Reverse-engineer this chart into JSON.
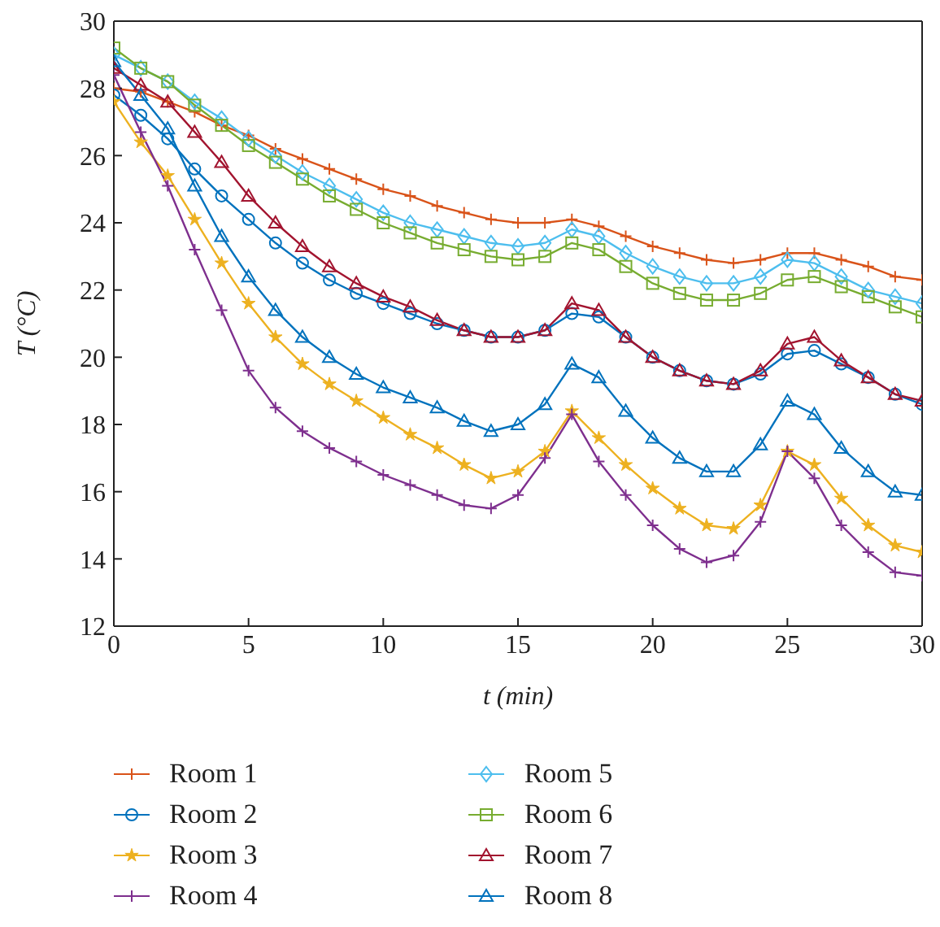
{
  "chart_data": {
    "type": "line",
    "xlabel": "t (min)",
    "ylabel": "T (°C)",
    "xlim": [
      0,
      30
    ],
    "xticks": [
      0,
      5,
      10,
      15,
      20,
      25,
      30
    ],
    "ylim": [
      12,
      30
    ],
    "yticks": [
      12,
      14,
      16,
      18,
      20,
      22,
      24,
      26,
      28,
      30
    ],
    "legend": "bottom",
    "line_style": "solid",
    "x": [
      0,
      1,
      2,
      3,
      4,
      5,
      6,
      7,
      8,
      9,
      10,
      11,
      12,
      13,
      14,
      15,
      16,
      17,
      18,
      19,
      20,
      21,
      22,
      23,
      24,
      25,
      26,
      27,
      28,
      29,
      30
    ],
    "series": [
      {
        "name": "Room 1",
        "color": "#d95319",
        "marker": "cross",
        "values": [
          28.0,
          27.9,
          27.6,
          27.3,
          26.9,
          26.6,
          26.2,
          25.9,
          25.6,
          25.3,
          25.0,
          24.8,
          24.5,
          24.3,
          24.1,
          24.0,
          24.0,
          24.1,
          23.9,
          23.6,
          23.3,
          23.1,
          22.9,
          22.8,
          22.9,
          23.1,
          23.1,
          22.9,
          22.7,
          22.4,
          22.3
        ]
      },
      {
        "name": "Room 2",
        "color": "#0072bd",
        "marker": "circle",
        "values": [
          27.8,
          27.2,
          26.5,
          25.6,
          24.8,
          24.1,
          23.4,
          22.8,
          22.3,
          21.9,
          21.6,
          21.3,
          21.0,
          20.8,
          20.6,
          20.6,
          20.8,
          21.3,
          21.2,
          20.6,
          20.0,
          19.6,
          19.3,
          19.2,
          19.5,
          20.1,
          20.2,
          19.8,
          19.4,
          18.9,
          18.6
        ]
      },
      {
        "name": "Room 3",
        "color": "#edb120",
        "marker": "star",
        "values": [
          27.6,
          26.4,
          25.4,
          24.1,
          22.8,
          21.6,
          20.6,
          19.8,
          19.2,
          18.7,
          18.2,
          17.7,
          17.3,
          16.8,
          16.4,
          16.6,
          17.2,
          18.4,
          17.6,
          16.8,
          16.1,
          15.5,
          15.0,
          14.9,
          15.6,
          17.2,
          16.8,
          15.8,
          15.0,
          14.4,
          14.2
        ]
      },
      {
        "name": "Room 4",
        "color": "#7e2f8e",
        "marker": "cross",
        "values": [
          28.4,
          26.7,
          25.1,
          23.2,
          21.4,
          19.6,
          18.5,
          17.8,
          17.3,
          16.9,
          16.5,
          16.2,
          15.9,
          15.6,
          15.5,
          15.9,
          17.0,
          18.3,
          16.9,
          15.9,
          15.0,
          14.3,
          13.9,
          14.1,
          15.1,
          17.2,
          16.4,
          15.0,
          14.2,
          13.6,
          13.5
        ]
      },
      {
        "name": "Room 5",
        "color": "#4dbeee",
        "marker": "diamond",
        "values": [
          29.0,
          28.6,
          28.2,
          27.6,
          27.1,
          26.5,
          26.0,
          25.5,
          25.1,
          24.7,
          24.3,
          24.0,
          23.8,
          23.6,
          23.4,
          23.3,
          23.4,
          23.8,
          23.6,
          23.1,
          22.7,
          22.4,
          22.2,
          22.2,
          22.4,
          22.9,
          22.8,
          22.4,
          22.0,
          21.8,
          21.6
        ]
      },
      {
        "name": "Room 6",
        "color": "#77ac30",
        "marker": "square",
        "values": [
          29.2,
          28.6,
          28.2,
          27.5,
          26.9,
          26.3,
          25.8,
          25.3,
          24.8,
          24.4,
          24.0,
          23.7,
          23.4,
          23.2,
          23.0,
          22.9,
          23.0,
          23.4,
          23.2,
          22.7,
          22.2,
          21.9,
          21.7,
          21.7,
          21.9,
          22.3,
          22.4,
          22.1,
          21.8,
          21.5,
          21.2
        ]
      },
      {
        "name": "Room 7",
        "color": "#a2142f",
        "marker": "triangle",
        "values": [
          28.6,
          28.1,
          27.6,
          26.7,
          25.8,
          24.8,
          24.0,
          23.3,
          22.7,
          22.2,
          21.8,
          21.5,
          21.1,
          20.8,
          20.6,
          20.6,
          20.8,
          21.6,
          21.4,
          20.6,
          20.0,
          19.6,
          19.3,
          19.2,
          19.6,
          20.4,
          20.6,
          19.9,
          19.4,
          18.9,
          18.7
        ]
      },
      {
        "name": "Room 8",
        "color": "#0072bd",
        "marker": "triangle",
        "values": [
          28.8,
          27.8,
          26.8,
          25.1,
          23.6,
          22.4,
          21.4,
          20.6,
          20.0,
          19.5,
          19.1,
          18.8,
          18.5,
          18.1,
          17.8,
          18.0,
          18.6,
          19.8,
          19.4,
          18.4,
          17.6,
          17.0,
          16.6,
          16.6,
          17.4,
          18.7,
          18.3,
          17.3,
          16.6,
          16.0,
          15.9
        ]
      }
    ]
  }
}
